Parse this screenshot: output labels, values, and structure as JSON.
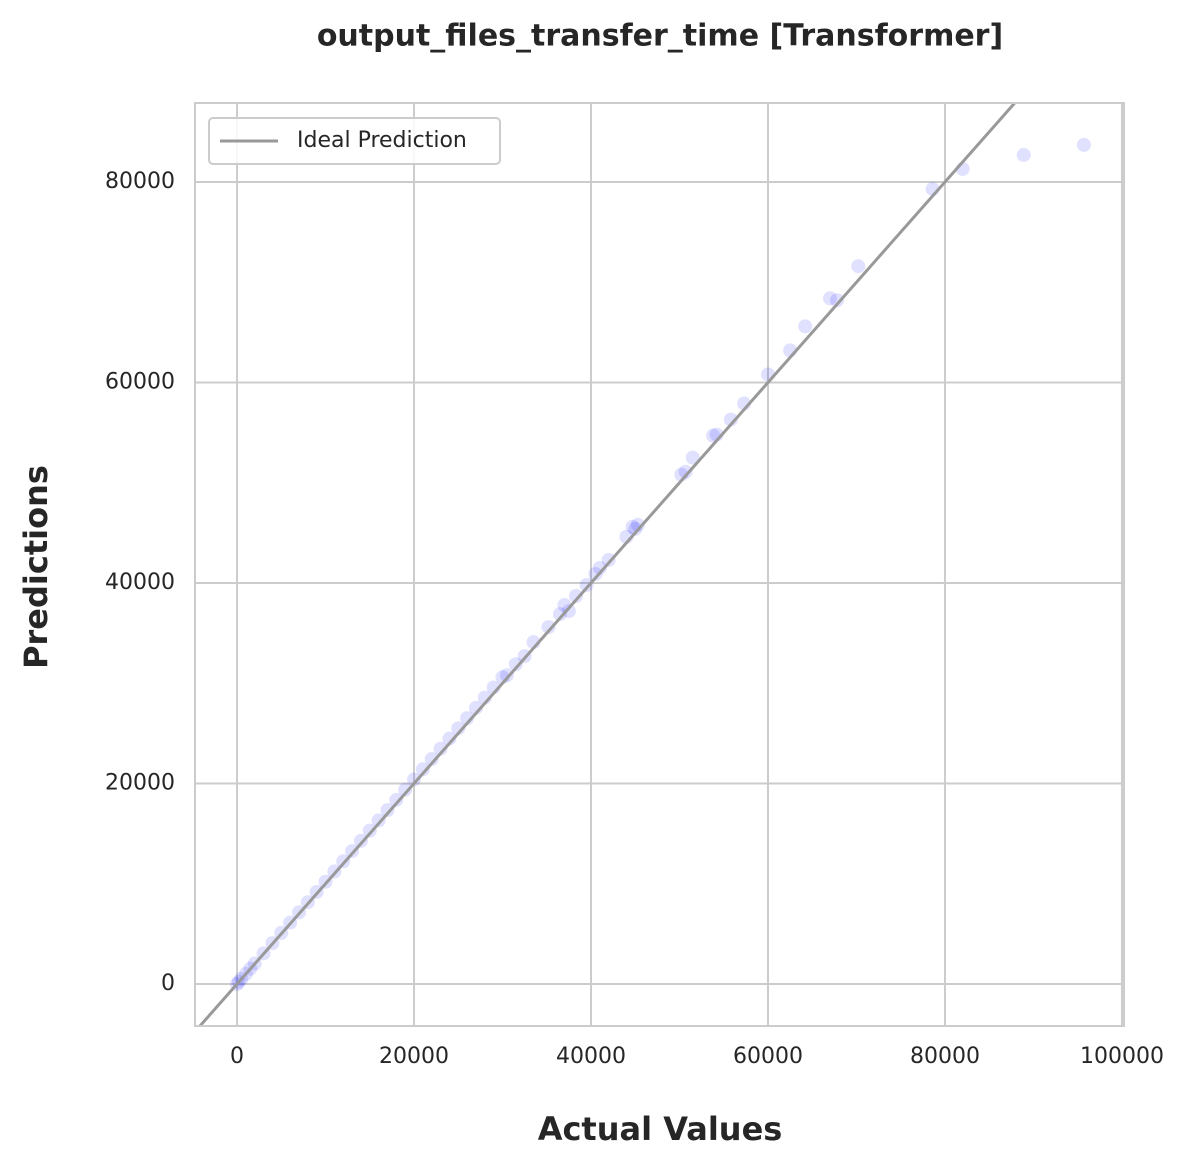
{
  "chart_data": {
    "type": "scatter",
    "title": "output_files_transfer_time [Transformer]",
    "x_label": "Actual Values",
    "y_label": "Predictions",
    "xlim": [
      -4750,
      100230
    ],
    "ylim": [
      -4190,
      87880
    ],
    "xticks": [
      0,
      20000,
      40000,
      60000,
      80000,
      100000
    ],
    "yticks": [
      0,
      20000,
      40000,
      60000,
      80000
    ],
    "grid": true,
    "legend_loc": "upper left",
    "points": {
      "color": "#0000ff",
      "x": [
        0,
        200,
        500,
        1000,
        1500,
        2000,
        3000,
        4000,
        5000,
        6000,
        7000,
        8000,
        9000,
        10000,
        11000,
        12000,
        13000,
        14000,
        15000,
        16000,
        17000,
        18000,
        19000,
        20000,
        21000,
        22000,
        23000,
        24000,
        25000,
        26000,
        27000,
        28000,
        29000,
        30000,
        30500,
        31500,
        32500,
        33500,
        35200,
        36500,
        37000,
        37500,
        38300,
        39500,
        40500,
        41000,
        42000,
        44000,
        44700,
        45000,
        45300,
        50200,
        50700,
        51500,
        53800,
        54200,
        55800,
        57300,
        60000,
        62500,
        64200,
        67000,
        67800,
        70200,
        78600,
        82000,
        88900,
        95700
      ],
      "values": [
        0,
        210,
        510,
        1020,
        1530,
        2040,
        3060,
        4080,
        5100,
        6120,
        7140,
        8160,
        9180,
        10200,
        11220,
        12240,
        13260,
        14280,
        15300,
        16320,
        17340,
        18360,
        19380,
        20400,
        21420,
        22440,
        23460,
        24480,
        25500,
        26520,
        27540,
        28560,
        29580,
        30600,
        30800,
        31900,
        32700,
        34100,
        35600,
        36900,
        37800,
        37200,
        38700,
        39800,
        40900,
        41500,
        42300,
        44600,
        45600,
        45400,
        45800,
        50800,
        51100,
        52500,
        54700,
        54800,
        56300,
        57900,
        60800,
        63200,
        65600,
        68400,
        68200,
        71600,
        79300,
        81300,
        82700,
        83700
      ]
    },
    "series": [
      {
        "name": "Ideal Prediction",
        "color": "#999999",
        "x": [
          -4750,
          87880
        ],
        "values": [
          -4750,
          87880
        ]
      }
    ]
  }
}
